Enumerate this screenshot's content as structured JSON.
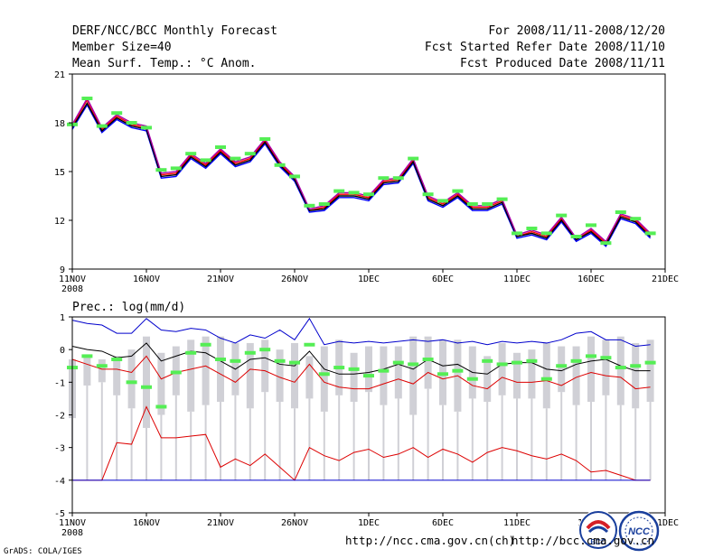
{
  "header": {
    "left": [
      "DERF/NCC/BCC Monthly Forecast",
      "Member Size=40",
      "Mean Surf. Temp.: °C Anom."
    ],
    "right": [
      "For 2008/11/11-2008/12/20",
      "Fcst Started Refer Date 2008/11/10",
      "Fcst Produced Date 2008/11/11"
    ]
  },
  "footer": {
    "url_left": "http://ncc.cma.gov.cn(ch)",
    "url_right": "http://bcc.cma.gov.cn",
    "credit": "GrADS: COLA/IGES"
  },
  "logos": {
    "bcc": "BCC",
    "ncc": "NCC"
  },
  "colors": {
    "obs_marker": "#55ee55",
    "member_blue": "#0000cc",
    "member_red": "#dd0000",
    "member_green": "#009900",
    "ens_mean": "#000000",
    "box": "#d0d0d6"
  },
  "chart_data": [
    {
      "type": "line",
      "title": "Mean Surf. Temp.: °C Anom.",
      "xlabel": "",
      "ylabel": "",
      "x_ticks": [
        "11NOV",
        "16NOV",
        "21NOV",
        "26NOV",
        "1DEC",
        "6DEC",
        "11DEC",
        "16DEC",
        "21DEC"
      ],
      "x_year_label": "2008",
      "x_tick_days": [
        0,
        5,
        10,
        15,
        20,
        25,
        30,
        35,
        40
      ],
      "xlim": [
        0,
        40
      ],
      "ylim": [
        9,
        21
      ],
      "y_ticks": [
        9,
        12,
        15,
        18,
        21
      ],
      "grid": false,
      "days": [
        0,
        1,
        2,
        3,
        4,
        5,
        6,
        7,
        8,
        9,
        10,
        11,
        12,
        13,
        14,
        15,
        16,
        17,
        18,
        19,
        20,
        21,
        22,
        23,
        24,
        25,
        26,
        27,
        28,
        29,
        30,
        31,
        32,
        33,
        34,
        35,
        36,
        37,
        38,
        39
      ],
      "series": [
        {
          "name": "member-1",
          "color": "#ff0000",
          "values": [
            17.8,
            19.4,
            17.6,
            18.4,
            17.9,
            17.7,
            14.8,
            14.9,
            16.0,
            15.4,
            16.3,
            15.5,
            15.8,
            16.9,
            15.5,
            14.6,
            12.6,
            12.8,
            13.6,
            13.6,
            13.4,
            14.4,
            14.5,
            15.7,
            13.4,
            13.0,
            13.6,
            12.8,
            12.8,
            13.2,
            11.0,
            11.3,
            11.0,
            12.1,
            10.8,
            11.4,
            10.6,
            12.3,
            12.0,
            11.1
          ]
        },
        {
          "name": "member-2",
          "color": "#0000ff",
          "values": [
            17.6,
            19.1,
            17.4,
            18.2,
            17.7,
            17.5,
            14.6,
            14.7,
            15.8,
            15.2,
            16.1,
            15.3,
            15.6,
            16.7,
            15.3,
            14.4,
            12.5,
            12.6,
            13.4,
            13.4,
            13.2,
            14.2,
            14.3,
            15.5,
            13.2,
            12.8,
            13.4,
            12.6,
            12.6,
            13.0,
            10.9,
            11.1,
            10.8,
            11.9,
            10.7,
            11.2,
            10.4,
            12.1,
            11.8,
            10.9
          ]
        },
        {
          "name": "member-3",
          "color": "#000000",
          "values": [
            17.7,
            19.2,
            17.5,
            18.3,
            17.8,
            17.6,
            14.7,
            14.8,
            15.9,
            15.3,
            16.2,
            15.4,
            15.7,
            16.8,
            15.4,
            14.5,
            12.6,
            12.7,
            13.5,
            13.5,
            13.3,
            14.3,
            14.4,
            15.6,
            13.3,
            12.9,
            13.5,
            12.7,
            12.7,
            13.1,
            11.0,
            11.2,
            10.9,
            12.0,
            10.8,
            11.3,
            10.5,
            12.2,
            11.9,
            11.0
          ]
        },
        {
          "name": "member-4",
          "color": "#aa00aa",
          "values": [
            17.9,
            19.5,
            17.7,
            18.5,
            18.0,
            17.8,
            14.9,
            15.0,
            16.1,
            15.5,
            16.4,
            15.6,
            15.9,
            17.0,
            15.6,
            14.7,
            12.7,
            12.9,
            13.7,
            13.7,
            13.5,
            14.5,
            14.6,
            15.8,
            13.5,
            13.1,
            13.7,
            12.9,
            12.9,
            13.3,
            11.1,
            11.4,
            11.1,
            12.2,
            10.9,
            11.5,
            10.7,
            12.4,
            12.1,
            11.2
          ]
        }
      ],
      "obs_markers": [
        17.9,
        19.5,
        17.8,
        18.6,
        18.0,
        17.7,
        15.1,
        15.2,
        16.1,
        15.7,
        16.5,
        15.8,
        16.1,
        17.0,
        15.4,
        14.7,
        12.9,
        13.0,
        13.8,
        13.7,
        13.6,
        14.6,
        14.6,
        15.8,
        13.6,
        13.2,
        13.8,
        13.0,
        13.0,
        13.3,
        11.2,
        11.5,
        11.2,
        12.3,
        11.0,
        11.7,
        10.6,
        12.5,
        12.1,
        11.2
      ]
    },
    {
      "type": "box",
      "title": "Prec.: log(mm/d)",
      "xlabel": "",
      "ylabel": "",
      "x_ticks": [
        "11NOV",
        "16NOV",
        "21NOV",
        "26NOV",
        "1DEC",
        "6DEC",
        "11DEC",
        "16DEC",
        "21DEC"
      ],
      "x_year_label": "2008",
      "x_tick_days": [
        0,
        5,
        10,
        15,
        20,
        25,
        30,
        35,
        40
      ],
      "xlim": [
        0,
        40
      ],
      "ylim": [
        -5,
        1
      ],
      "y_ticks": [
        -5,
        -4,
        -3,
        -2,
        -1,
        0,
        1
      ],
      "grid": false,
      "box_low": [
        -2.1,
        -1.1,
        -1.0,
        -1.4,
        -1.8,
        -2.4,
        -2.0,
        -1.4,
        -1.9,
        -1.7,
        -1.6,
        -1.4,
        -1.8,
        -1.3,
        -1.6,
        -1.8,
        -1.5,
        -1.9,
        -1.4,
        -1.6,
        -1.3,
        -1.7,
        -1.5,
        -2.0,
        -1.2,
        -1.7,
        -1.9,
        -1.5,
        -1.6,
        -1.4,
        -1.5,
        -1.5,
        -1.8,
        -1.3,
        -1.7,
        -1.6,
        -1.4,
        -1.7,
        -1.8,
        -1.6
      ],
      "box_high": [
        -0.3,
        -0.2,
        -0.3,
        -0.2,
        0.0,
        0.4,
        -0.1,
        0.1,
        0.3,
        0.4,
        0.4,
        0.2,
        0.2,
        0.3,
        0.0,
        0.2,
        -0.2,
        0.1,
        0.3,
        -0.1,
        0.1,
        0.1,
        0.1,
        0.4,
        0.4,
        0.3,
        0.3,
        0.1,
        -0.2,
        0.2,
        -0.1,
        0.0,
        0.2,
        0.1,
        0.1,
        0.4,
        0.3,
        0.4,
        0.2,
        0.3
      ],
      "whisker_low": [
        -4,
        -4,
        -4,
        -4,
        -4,
        -4,
        -4,
        -4,
        -4,
        -4,
        -4,
        -4,
        -4,
        -4,
        -4,
        -4,
        -4,
        -4,
        -4,
        -4,
        -4,
        -4,
        -4,
        -4,
        -4,
        -4,
        -4,
        -4,
        -4,
        -4,
        -4,
        -4,
        -4,
        -4,
        -4,
        -4,
        -4,
        -4,
        -4,
        -4
      ],
      "series": [
        {
          "name": "max",
          "color": "#0000cc",
          "values": [
            0.9,
            0.8,
            0.75,
            0.5,
            0.5,
            0.95,
            0.6,
            0.55,
            0.65,
            0.6,
            0.35,
            0.2,
            0.45,
            0.35,
            0.6,
            0.3,
            0.95,
            0.15,
            0.25,
            0.2,
            0.25,
            0.2,
            0.25,
            0.3,
            0.25,
            0.3,
            0.2,
            0.25,
            0.15,
            0.25,
            0.2,
            0.25,
            0.2,
            0.3,
            0.5,
            0.55,
            0.3,
            0.3,
            0.1,
            0.15
          ]
        },
        {
          "name": "mean",
          "color": "#000000",
          "values": [
            0.1,
            0.0,
            -0.05,
            -0.25,
            -0.2,
            0.2,
            -0.35,
            -0.2,
            -0.05,
            -0.1,
            -0.35,
            -0.6,
            -0.3,
            -0.25,
            -0.45,
            -0.5,
            -0.05,
            -0.6,
            -0.75,
            -0.75,
            -0.7,
            -0.6,
            -0.45,
            -0.6,
            -0.3,
            -0.5,
            -0.45,
            -0.7,
            -0.75,
            -0.45,
            -0.4,
            -0.4,
            -0.6,
            -0.65,
            -0.45,
            -0.35,
            -0.3,
            -0.5,
            -0.65,
            -0.65
          ]
        },
        {
          "name": "p25",
          "color": "#dd0000",
          "values": [
            -0.3,
            -0.45,
            -0.6,
            -0.6,
            -0.7,
            -0.2,
            -0.9,
            -0.7,
            -0.6,
            -0.5,
            -0.75,
            -1.0,
            -0.6,
            -0.65,
            -0.85,
            -1.0,
            -0.45,
            -1.0,
            -1.15,
            -1.2,
            -1.2,
            -1.05,
            -0.9,
            -1.05,
            -0.7,
            -0.9,
            -0.8,
            -1.1,
            -1.2,
            -0.85,
            -1.0,
            -1.0,
            -0.95,
            -1.1,
            -0.85,
            -0.7,
            -0.8,
            -0.85,
            -1.2,
            -1.15
          ]
        },
        {
          "name": "min",
          "color": "#dd0000",
          "values": [
            -4.0,
            -4.0,
            -4.0,
            -2.85,
            -2.9,
            -1.75,
            -2.7,
            -2.7,
            -2.65,
            -2.6,
            -3.6,
            -3.35,
            -3.55,
            -3.2,
            -3.6,
            -4.0,
            -3.0,
            -3.25,
            -3.4,
            -3.15,
            -3.05,
            -3.3,
            -3.2,
            -3.0,
            -3.3,
            -3.05,
            -3.2,
            -3.45,
            -3.15,
            -3.0,
            -3.1,
            -3.25,
            -3.35,
            -3.2,
            -3.4,
            -3.75,
            -3.7,
            -3.85,
            -4.0,
            -4.0
          ]
        },
        {
          "name": "floor",
          "color": "#0000cc",
          "values": [
            -4,
            -4,
            -4,
            -4,
            -4,
            -4,
            -4,
            -4,
            -4,
            -4,
            -4,
            -4,
            -4,
            -4,
            -4,
            -4,
            -4,
            -4,
            -4,
            -4,
            -4,
            -4,
            -4,
            -4,
            -4,
            -4,
            -4,
            -4,
            -4,
            -4,
            -4,
            -4,
            -4,
            -4,
            -4,
            -4,
            -4,
            -4,
            -4,
            -4
          ]
        }
      ],
      "obs_markers": [
        -0.55,
        -0.2,
        -0.5,
        -0.3,
        -1.0,
        -1.15,
        -1.75,
        -0.7,
        -0.1,
        0.15,
        -0.3,
        -0.35,
        -0.1,
        0.0,
        -0.35,
        -0.4,
        0.15,
        -0.75,
        -0.55,
        -0.6,
        -0.8,
        -0.65,
        -0.4,
        -0.45,
        -0.3,
        -0.75,
        -0.65,
        -0.9,
        -0.35,
        -0.45,
        -0.4,
        -0.35,
        -0.9,
        -0.5,
        -0.35,
        -0.2,
        -0.25,
        -0.55,
        -0.5,
        -0.4
      ]
    }
  ]
}
